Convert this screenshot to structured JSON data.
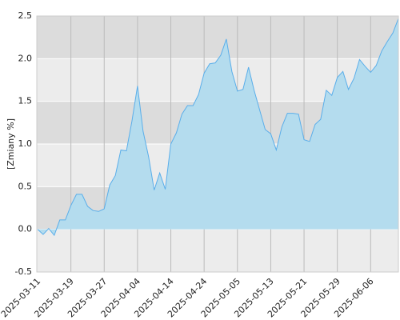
{
  "chart_data": {
    "type": "area",
    "y_label": "[Zmiany %]",
    "categories": [
      "2025-03-11",
      null,
      null,
      null,
      null,
      null,
      "2025-03-19",
      null,
      null,
      null,
      null,
      null,
      "2025-03-27",
      null,
      null,
      null,
      null,
      null,
      "2025-04-04",
      null,
      null,
      null,
      null,
      null,
      "2025-04-14",
      null,
      null,
      null,
      null,
      null,
      "2025-04-24",
      null,
      null,
      null,
      null,
      null,
      "2025-05-05",
      null,
      null,
      null,
      null,
      null,
      "2025-05-13",
      null,
      null,
      null,
      null,
      null,
      "2025-05-21",
      null,
      null,
      null,
      null,
      null,
      "2025-05-29",
      null,
      null,
      null,
      null,
      null,
      "2025-06-06",
      null,
      null,
      null,
      null,
      null
    ],
    "values": [
      0.0,
      -0.06,
      0.01,
      -0.07,
      0.11,
      0.11,
      0.28,
      0.41,
      0.41,
      0.27,
      0.22,
      0.21,
      0.24,
      0.52,
      0.63,
      0.93,
      0.92,
      1.27,
      1.68,
      1.15,
      0.85,
      0.46,
      0.66,
      0.47,
      1.0,
      1.13,
      1.35,
      1.45,
      1.45,
      1.58,
      1.83,
      1.94,
      1.95,
      2.04,
      2.23,
      1.85,
      1.62,
      1.64,
      1.9,
      1.63,
      1.4,
      1.17,
      1.12,
      0.93,
      1.2,
      1.36,
      1.36,
      1.35,
      1.05,
      1.03,
      1.23,
      1.29,
      1.63,
      1.57,
      1.78,
      1.85,
      1.64,
      1.77,
      1.99,
      1.91,
      1.84,
      1.92,
      2.09,
      2.2,
      2.3,
      2.47
    ],
    "line_color": "#5aaeea",
    "fill_color": "#b4dcee",
    "band_colors": [
      "#ececec",
      "#dcdcdc"
    ],
    "ylim": [
      -0.5,
      2.5
    ],
    "yticks": [
      -0.5,
      {
        "value": 0,
        "label": "0.0"
      },
      {
        "value": 0.5,
        "label": "0.5"
      },
      {
        "value": 1,
        "label": "1.0"
      },
      {
        "value": 1.5,
        "label": "1.5"
      },
      {
        "value": 2,
        "label": "2.0"
      },
      2.5
    ],
    "grid": true
  }
}
